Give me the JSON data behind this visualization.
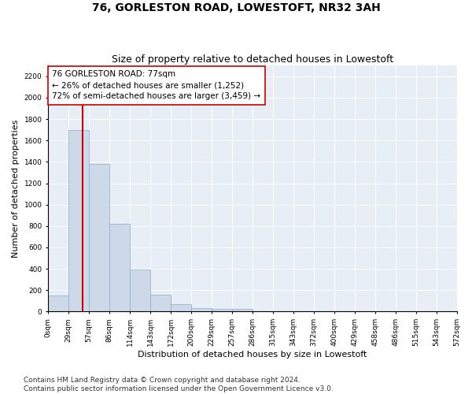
{
  "title": "76, GORLESTON ROAD, LOWESTOFT, NR32 3AH",
  "subtitle": "Size of property relative to detached houses in Lowestoft",
  "xlabel": "Distribution of detached houses by size in Lowestoft",
  "ylabel": "Number of detached properties",
  "bar_color": "#cdd9e8",
  "bar_edge_color": "#8aaac8",
  "bar_heights": [
    150,
    1700,
    1380,
    820,
    390,
    160,
    70,
    30,
    25,
    25,
    0,
    0,
    0,
    0,
    0,
    0,
    0,
    0,
    0,
    0
  ],
  "tick_labels": [
    "0sqm",
    "29sqm",
    "57sqm",
    "86sqm",
    "114sqm",
    "143sqm",
    "172sqm",
    "200sqm",
    "229sqm",
    "257sqm",
    "286sqm",
    "315sqm",
    "343sqm",
    "372sqm",
    "400sqm",
    "429sqm",
    "458sqm",
    "486sqm",
    "515sqm",
    "543sqm",
    "572sqm"
  ],
  "n_bins": 20,
  "vline_bin": 1.65,
  "vline_color": "#cc0000",
  "annotation_text": "76 GORLESTON ROAD: 77sqm\n← 26% of detached houses are smaller (1,252)\n72% of semi-detached houses are larger (3,459) →",
  "annotation_box_color": "#ffffff",
  "annotation_box_edge": "#cc0000",
  "ylim": [
    0,
    2300
  ],
  "yticks": [
    0,
    200,
    400,
    600,
    800,
    1000,
    1200,
    1400,
    1600,
    1800,
    2000,
    2200
  ],
  "footer1": "Contains HM Land Registry data © Crown copyright and database right 2024.",
  "footer2": "Contains public sector information licensed under the Open Government Licence v3.0.",
  "background_color": "#e8eef6",
  "grid_color": "#ffffff",
  "title_fontsize": 10,
  "subtitle_fontsize": 9,
  "axis_label_fontsize": 8,
  "tick_fontsize": 6.5,
  "annotation_fontsize": 7.5,
  "footer_fontsize": 6.5
}
